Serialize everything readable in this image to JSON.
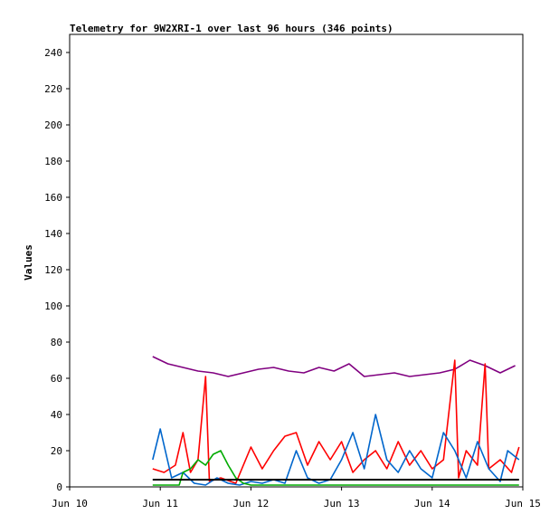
{
  "chart_data": {
    "type": "line",
    "title": "Telemetry for 9W2XRI-1 over last 96 hours (346 points)",
    "xlabel": "",
    "ylabel": "Values",
    "xlim": [
      "2023-06-10",
      "2023-06-15"
    ],
    "ylim": [
      0,
      250
    ],
    "x_ticks": [
      "Jun 10",
      "Jun 11",
      "Jun 12",
      "Jun 13",
      "Jun 14",
      "Jun 15"
    ],
    "y_ticks": [
      0,
      20,
      40,
      60,
      80,
      100,
      120,
      140,
      160,
      180,
      200,
      220,
      240
    ],
    "grid": false,
    "legend": "none",
    "series": [
      {
        "color": "#800080",
        "points": [
          [
            "2023-06-10 22:00",
            72
          ],
          [
            "2023-06-11 02:00",
            68
          ],
          [
            "2023-06-11 06:00",
            66
          ],
          [
            "2023-06-11 10:00",
            64
          ],
          [
            "2023-06-11 14:00",
            63
          ],
          [
            "2023-06-11 18:00",
            61
          ],
          [
            "2023-06-11 22:00",
            63
          ],
          [
            "2023-06-12 02:00",
            65
          ],
          [
            "2023-06-12 06:00",
            66
          ],
          [
            "2023-06-12 10:00",
            64
          ],
          [
            "2023-06-12 14:00",
            63
          ],
          [
            "2023-06-12 18:00",
            66
          ],
          [
            "2023-06-12 22:00",
            64
          ],
          [
            "2023-06-13 02:00",
            68
          ],
          [
            "2023-06-13 06:00",
            61
          ],
          [
            "2023-06-13 10:00",
            62
          ],
          [
            "2023-06-13 14:00",
            63
          ],
          [
            "2023-06-13 18:00",
            61
          ],
          [
            "2023-06-13 22:00",
            62
          ],
          [
            "2023-06-14 02:00",
            63
          ],
          [
            "2023-06-14 06:00",
            65
          ],
          [
            "2023-06-14 10:00",
            70
          ],
          [
            "2023-06-14 14:00",
            67
          ],
          [
            "2023-06-14 18:00",
            63
          ],
          [
            "2023-06-14 22:00",
            67
          ]
        ]
      },
      {
        "color": "#ff0000",
        "points": [
          [
            "2023-06-10 22:00",
            10
          ],
          [
            "2023-06-11 01:00",
            8
          ],
          [
            "2023-06-11 04:00",
            12
          ],
          [
            "2023-06-11 06:00",
            30
          ],
          [
            "2023-06-11 08:00",
            8
          ],
          [
            "2023-06-11 10:00",
            15
          ],
          [
            "2023-06-11 12:00",
            61
          ],
          [
            "2023-06-11 13:00",
            3
          ],
          [
            "2023-06-11 16:00",
            5
          ],
          [
            "2023-06-11 20:00",
            2
          ],
          [
            "2023-06-12 00:00",
            22
          ],
          [
            "2023-06-12 03:00",
            10
          ],
          [
            "2023-06-12 06:00",
            20
          ],
          [
            "2023-06-12 09:00",
            28
          ],
          [
            "2023-06-12 12:00",
            30
          ],
          [
            "2023-06-12 15:00",
            12
          ],
          [
            "2023-06-12 18:00",
            25
          ],
          [
            "2023-06-12 21:00",
            15
          ],
          [
            "2023-06-13 00:00",
            25
          ],
          [
            "2023-06-13 03:00",
            8
          ],
          [
            "2023-06-13 06:00",
            15
          ],
          [
            "2023-06-13 09:00",
            20
          ],
          [
            "2023-06-13 12:00",
            10
          ],
          [
            "2023-06-13 15:00",
            25
          ],
          [
            "2023-06-13 18:00",
            12
          ],
          [
            "2023-06-13 21:00",
            20
          ],
          [
            "2023-06-14 00:00",
            10
          ],
          [
            "2023-06-14 03:00",
            15
          ],
          [
            "2023-06-14 06:00",
            70
          ],
          [
            "2023-06-14 07:00",
            5
          ],
          [
            "2023-06-14 09:00",
            20
          ],
          [
            "2023-06-14 12:00",
            12
          ],
          [
            "2023-06-14 14:00",
            68
          ],
          [
            "2023-06-14 15:00",
            10
          ],
          [
            "2023-06-14 18:00",
            15
          ],
          [
            "2023-06-14 21:00",
            8
          ],
          [
            "2023-06-14 23:00",
            22
          ]
        ]
      },
      {
        "color": "#0066cc",
        "points": [
          [
            "2023-06-10 22:00",
            15
          ],
          [
            "2023-06-11 00:00",
            32
          ],
          [
            "2023-06-11 03:00",
            5
          ],
          [
            "2023-06-11 06:00",
            8
          ],
          [
            "2023-06-11 09:00",
            2
          ],
          [
            "2023-06-11 12:00",
            1
          ],
          [
            "2023-06-11 15:00",
            5
          ],
          [
            "2023-06-11 18:00",
            2
          ],
          [
            "2023-06-11 21:00",
            1
          ],
          [
            "2023-06-12 00:00",
            3
          ],
          [
            "2023-06-12 03:00",
            2
          ],
          [
            "2023-06-12 06:00",
            4
          ],
          [
            "2023-06-12 09:00",
            2
          ],
          [
            "2023-06-12 12:00",
            20
          ],
          [
            "2023-06-12 15:00",
            5
          ],
          [
            "2023-06-12 18:00",
            2
          ],
          [
            "2023-06-12 21:00",
            4
          ],
          [
            "2023-06-13 00:00",
            15
          ],
          [
            "2023-06-13 03:00",
            30
          ],
          [
            "2023-06-13 06:00",
            10
          ],
          [
            "2023-06-13 09:00",
            40
          ],
          [
            "2023-06-13 12:00",
            15
          ],
          [
            "2023-06-13 15:00",
            8
          ],
          [
            "2023-06-13 18:00",
            20
          ],
          [
            "2023-06-13 21:00",
            10
          ],
          [
            "2023-06-14 00:00",
            5
          ],
          [
            "2023-06-14 03:00",
            30
          ],
          [
            "2023-06-14 06:00",
            20
          ],
          [
            "2023-06-14 09:00",
            5
          ],
          [
            "2023-06-14 12:00",
            25
          ],
          [
            "2023-06-14 15:00",
            10
          ],
          [
            "2023-06-14 18:00",
            3
          ],
          [
            "2023-06-14 20:00",
            20
          ],
          [
            "2023-06-14 23:00",
            15
          ]
        ]
      },
      {
        "color": "#00aa00",
        "points": [
          [
            "2023-06-10 22:00",
            1
          ],
          [
            "2023-06-11 05:00",
            1
          ],
          [
            "2023-06-11 06:00",
            8
          ],
          [
            "2023-06-11 08:00",
            10
          ],
          [
            "2023-06-11 10:00",
            15
          ],
          [
            "2023-06-11 12:00",
            12
          ],
          [
            "2023-06-11 14:00",
            18
          ],
          [
            "2023-06-11 16:00",
            20
          ],
          [
            "2023-06-11 18:00",
            12
          ],
          [
            "2023-06-11 20:00",
            5
          ],
          [
            "2023-06-11 22:00",
            2
          ],
          [
            "2023-06-12 00:00",
            1
          ],
          [
            "2023-06-12 12:00",
            1
          ],
          [
            "2023-06-13 00:00",
            1
          ],
          [
            "2023-06-13 12:00",
            1
          ],
          [
            "2023-06-14 00:00",
            1
          ],
          [
            "2023-06-14 12:00",
            1
          ],
          [
            "2023-06-14 23:00",
            1
          ]
        ]
      },
      {
        "color": "#000000",
        "points": [
          [
            "2023-06-10 22:00",
            4
          ],
          [
            "2023-06-14 23:00",
            4
          ]
        ]
      }
    ]
  }
}
